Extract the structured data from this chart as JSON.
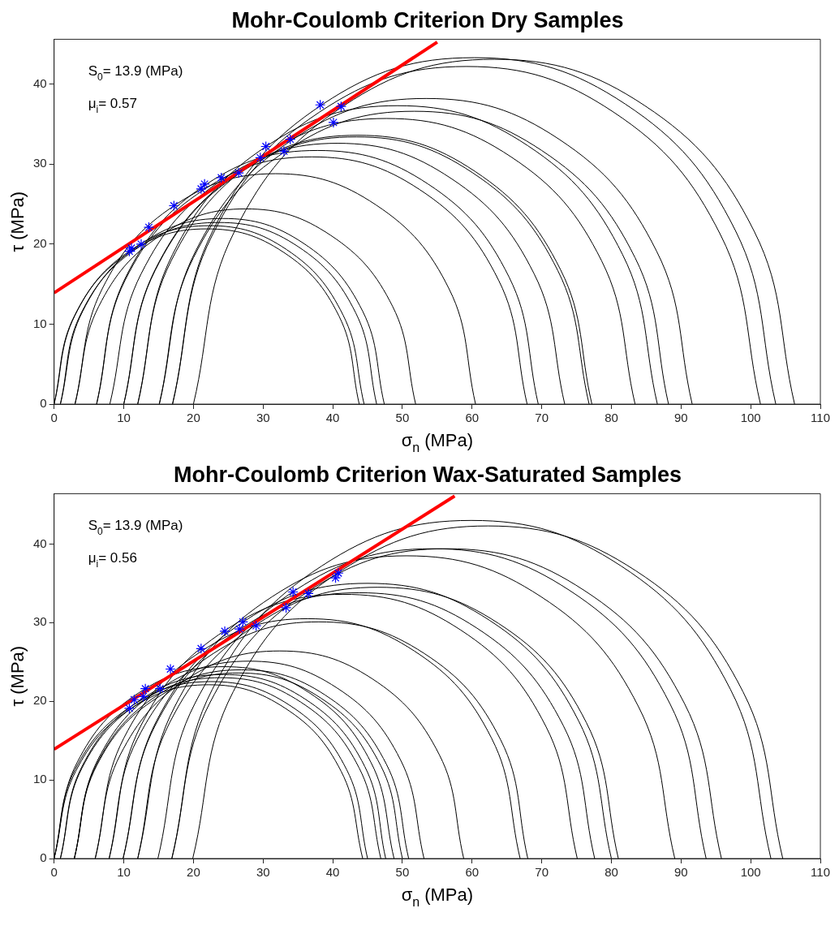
{
  "chart_data": [
    {
      "type": "line",
      "title": "Mohr-Coulomb Criterion Dry Samples",
      "xlabel": "σ$_{n}$ (MPa)",
      "ylabel": "τ (MPa)",
      "annotations": [
        "S$_{0}$= 13.9 (MPa)",
        "μ$_{i}$= 0.57"
      ],
      "xlim": [
        0,
        110
      ],
      "ylim": [
        0,
        45.6
      ],
      "xticks": [
        0,
        10,
        20,
        30,
        40,
        50,
        60,
        70,
        80,
        90,
        100,
        110
      ],
      "yticks": [
        0,
        10,
        20,
        30,
        40
      ],
      "grid": false,
      "marker": "none",
      "series": [
        {
          "color": "#000000",
          "x": [
            0,
            2.9,
            10.9,
            21.9,
            32.9,
            40.9,
            43.8
          ],
          "values": [
            0,
            11.0,
            19.0,
            21.9,
            19.0,
            11.0,
            0
          ]
        },
        {
          "color": "#000000",
          "x": [
            0,
            3.0,
            11.1,
            22.3,
            33.4,
            41.5,
            44.5
          ],
          "values": [
            0,
            11.1,
            19.3,
            22.3,
            19.3,
            11.1,
            0
          ]
        },
        {
          "color": "#000000",
          "x": [
            0.9,
            3.9,
            12.3,
            23.6,
            35.0,
            43.3,
            46.3
          ],
          "values": [
            0,
            11.4,
            19.7,
            22.7,
            19.7,
            11.4,
            0
          ]
        },
        {
          "color": "#000000",
          "x": [
            0.9,
            4.1,
            12.6,
            24.2,
            35.8,
            44.3,
            47.4
          ],
          "values": [
            0,
            11.6,
            20.1,
            23.2,
            20.1,
            11.6,
            0
          ]
        },
        {
          "color": "#000000",
          "x": [
            3,
            6.9,
            17.4,
            31.8,
            46.2,
            56.7,
            60.5
          ],
          "values": [
            0,
            14.4,
            24.9,
            28.8,
            24.9,
            14.4,
            0
          ]
        },
        {
          "color": "#000000",
          "x": [
            3,
            6.4,
            15.3,
            27.5,
            39.7,
            48.6,
            51.9
          ],
          "values": [
            0,
            12.2,
            21.1,
            24.4,
            21.1,
            12.2,
            0
          ]
        },
        {
          "color": "#000000",
          "x": [
            6.1,
            10.2,
            21.5,
            37.0,
            52.5,
            63.8,
            67.9
          ],
          "values": [
            0,
            15.5,
            26.8,
            30.9,
            26.8,
            15.5,
            0
          ]
        },
        {
          "color": "#000000",
          "x": [
            6.1,
            10.3,
            21.9,
            37.8,
            53.7,
            65.3,
            69.5
          ],
          "values": [
            0,
            15.9,
            27.5,
            31.7,
            27.5,
            15.9,
            0
          ]
        },
        {
          "color": "#000000",
          "x": [
            8,
            12.5,
            24.4,
            40.7,
            57.0,
            68.9,
            73.3
          ],
          "values": [
            0,
            16.3,
            28.2,
            32.6,
            28.2,
            16.3,
            0
          ]
        },
        {
          "color": "#000000",
          "x": [
            10,
            14.5,
            26.7,
            43.4,
            60.1,
            72.3,
            76.8
          ],
          "values": [
            0,
            16.7,
            28.9,
            33.4,
            28.9,
            16.7,
            0
          ]
        },
        {
          "color": "#000000",
          "x": [
            10,
            14.5,
            26.8,
            43.6,
            60.4,
            72.7,
            77.2
          ],
          "values": [
            0,
            16.8,
            29.1,
            33.6,
            29.1,
            16.8,
            0
          ]
        },
        {
          "color": "#000000",
          "x": [
            12,
            16.8,
            29.8,
            47.7,
            65.6,
            78.6,
            83.4
          ],
          "values": [
            0,
            17.9,
            30.9,
            35.7,
            30.9,
            17.9,
            0
          ]
        },
        {
          "color": "#000000",
          "x": [
            12,
            17.0,
            30.6,
            49.3,
            68.0,
            81.6,
            86.6
          ],
          "values": [
            0,
            18.7,
            32.3,
            37.3,
            32.3,
            18.7,
            0
          ]
        },
        {
          "color": "#000000",
          "x": [
            15.1,
            20.0,
            33.4,
            51.7,
            70.0,
            83.4,
            88.2
          ],
          "values": [
            0,
            18.3,
            31.7,
            36.6,
            31.7,
            18.3,
            0
          ]
        },
        {
          "color": "#000000",
          "x": [
            15.1,
            20.3,
            34.3,
            53.4,
            72.5,
            86.5,
            91.6
          ],
          "values": [
            0,
            19.1,
            33.1,
            38.2,
            33.1,
            19.1,
            0
          ]
        },
        {
          "color": "#000000",
          "x": [
            17,
            22.7,
            38.1,
            59.2,
            80.3,
            95.7,
            101.4
          ],
          "values": [
            0,
            21.1,
            36.5,
            42.2,
            36.5,
            21.1,
            0
          ]
        },
        {
          "color": "#000000",
          "x": [
            17,
            22.8,
            38.6,
            60.3,
            82.0,
            97.8,
            103.6
          ],
          "values": [
            0,
            21.7,
            37.5,
            43.3,
            37.5,
            21.7,
            0
          ]
        },
        {
          "color": "#000000",
          "x": [
            20,
            25.9,
            41.6,
            63.2,
            84.8,
            100.5,
            106.3
          ],
          "values": [
            0,
            21.6,
            37.3,
            43.1,
            37.3,
            21.6,
            0
          ]
        },
        {
          "color": "#ff0000",
          "x": [
            0,
            55
          ],
          "values": [
            13.9,
            45.25
          ]
        },
        {
          "type": "scatter",
          "color": "#0000ff",
          "marker": "cross",
          "x": [
            10.8,
            11.1,
            12.5,
            13.6,
            17.2,
            21.1,
            21.6,
            24.0,
            26.5,
            29.6,
            30.4,
            33.0,
            33.9,
            38.2,
            40.1,
            41.2
          ],
          "values": [
            19.1,
            19.5,
            20.0,
            22.1,
            24.8,
            26.9,
            27.5,
            28.3,
            28.9,
            30.8,
            32.2,
            31.6,
            33.1,
            37.4,
            35.2,
            37.2
          ]
        }
      ]
    },
    {
      "type": "line",
      "title": "Mohr-Coulomb Criterion Wax-Saturated Samples",
      "xlabel": "σ$_{n}$ (MPa)",
      "ylabel": "τ (MPa)",
      "annotations": [
        "S$_{0}$= 13.9 (MPa)",
        "μ$_{i}$= 0.56"
      ],
      "xlim": [
        0,
        110
      ],
      "ylim": [
        0,
        46.4
      ],
      "xticks": [
        0,
        10,
        20,
        30,
        40,
        50,
        60,
        70,
        80,
        90,
        100,
        110
      ],
      "yticks": [
        0,
        10,
        20,
        30,
        40
      ],
      "grid": false,
      "marker": "none",
      "series": [
        {
          "color": "#000000",
          "x": [
            0,
            3.1,
            11.1,
            22.2,
            33.2,
            41.2,
            44.3
          ],
          "values": [
            0,
            11.1,
            19.1,
            22.1,
            19.1,
            11.1,
            0
          ]
        },
        {
          "color": "#000000",
          "x": [
            0,
            3.0,
            11.3,
            22.5,
            33.8,
            42.0,
            45.0
          ],
          "values": [
            0,
            11.3,
            19.5,
            22.5,
            19.5,
            11.3,
            0
          ]
        },
        {
          "color": "#000000",
          "x": [
            0.9,
            4.0,
            12.4,
            23.9,
            35.4,
            43.8,
            46.9
          ],
          "values": [
            0,
            11.5,
            19.9,
            23.0,
            19.9,
            11.5,
            0
          ]
        },
        {
          "color": "#000000",
          "x": [
            0.9,
            4.0,
            12.6,
            24.3,
            36.0,
            44.6,
            47.6
          ],
          "values": [
            0,
            11.7,
            20.3,
            23.4,
            20.3,
            11.7,
            0
          ]
        },
        {
          "color": "#000000",
          "x": [
            0,
            3.3,
            12.2,
            24.4,
            36.6,
            45.5,
            48.8
          ],
          "values": [
            0,
            12.2,
            21.1,
            24.4,
            21.1,
            12.2,
            0
          ]
        },
        {
          "color": "#000000",
          "x": [
            2.9,
            6.1,
            14.7,
            26.5,
            38.3,
            46.9,
            50.0
          ],
          "values": [
            0,
            11.8,
            20.4,
            23.6,
            20.4,
            11.8,
            0
          ]
        },
        {
          "color": "#000000",
          "x": [
            2.9,
            6.1,
            14.9,
            26.9,
            38.9,
            47.7,
            50.9
          ],
          "values": [
            0,
            12.0,
            20.8,
            24.0,
            20.8,
            12.0,
            0
          ]
        },
        {
          "color": "#000000",
          "x": [
            2.9,
            6.3,
            15.4,
            28.0,
            40.6,
            49.7,
            53.1
          ],
          "values": [
            0,
            12.6,
            21.7,
            25.1,
            21.7,
            12.6,
            0
          ]
        },
        {
          "color": "#000000",
          "x": [
            5.9,
            9.5,
            19.2,
            32.4,
            45.6,
            55.3,
            58.8
          ],
          "values": [
            0,
            13.2,
            22.9,
            26.4,
            22.9,
            13.2,
            0
          ]
        },
        {
          "color": "#000000",
          "x": [
            5.9,
            10.0,
            21.2,
            36.4,
            51.7,
            62.8,
            66.9
          ],
          "values": [
            0,
            15.3,
            26.4,
            30.5,
            26.4,
            15.3,
            0
          ]
        },
        {
          "color": "#000000",
          "x": [
            7.9,
            11.9,
            22.9,
            38.0,
            53.1,
            64.1,
            68.0
          ],
          "values": [
            0,
            15.1,
            26.1,
            30.1,
            26.1,
            15.1,
            0
          ]
        },
        {
          "color": "#000000",
          "x": [
            7.9,
            12.4,
            24.7,
            41.5,
            58.3,
            70.6,
            75.1
          ],
          "values": [
            0,
            16.8,
            29.1,
            33.6,
            29.1,
            16.8,
            0
          ]
        },
        {
          "color": "#000000",
          "x": [
            9.9,
            14.5,
            26.9,
            43.8,
            60.7,
            73.1,
            77.6
          ],
          "values": [
            0,
            16.9,
            29.3,
            33.8,
            29.3,
            16.9,
            0
          ]
        },
        {
          "color": "#000000",
          "x": [
            9.9,
            14.7,
            27.5,
            45.0,
            62.5,
            75.3,
            80.0
          ],
          "values": [
            0,
            17.5,
            30.3,
            35.0,
            30.3,
            17.5,
            0
          ]
        },
        {
          "color": "#000000",
          "x": [
            12,
            16.6,
            29.3,
            46.5,
            63.8,
            76.4,
            81.0
          ],
          "values": [
            0,
            17.3,
            29.9,
            34.5,
            29.9,
            17.3,
            0
          ]
        },
        {
          "color": "#000000",
          "x": [
            12,
            17.3,
            31.3,
            50.6,
            69.9,
            83.9,
            89.1
          ],
          "values": [
            0,
            19.3,
            33.3,
            38.5,
            33.3,
            19.3,
            0
          ]
        },
        {
          "color": "#000000",
          "x": [
            14.9,
            20.2,
            34.6,
            54.3,
            74.0,
            88.4,
            93.6
          ],
          "values": [
            0,
            19.7,
            34.1,
            39.4,
            34.1,
            19.7,
            0
          ]
        },
        {
          "color": "#000000",
          "x": [
            16.9,
            22.3,
            36.7,
            56.4,
            76.1,
            90.5,
            95.8
          ],
          "values": [
            0,
            19.7,
            34.1,
            39.4,
            34.1,
            19.7,
            0
          ]
        },
        {
          "color": "#000000",
          "x": [
            16.9,
            22.7,
            38.4,
            59.9,
            81.4,
            97.1,
            102.9
          ],
          "values": [
            0,
            21.5,
            37.2,
            43.0,
            37.2,
            21.5,
            0
          ]
        },
        {
          "color": "#000000",
          "x": [
            19.9,
            25.7,
            41.2,
            62.3,
            83.5,
            98.9,
            104.6
          ],
          "values": [
            0,
            21.2,
            36.6,
            42.3,
            36.6,
            21.2,
            0
          ]
        },
        {
          "color": "#ff0000",
          "x": [
            0,
            57.5
          ],
          "values": [
            13.9,
            46.1
          ]
        },
        {
          "type": "scatter",
          "color": "#0000ff",
          "marker": "cross",
          "x": [
            10.8,
            11.5,
            12.8,
            13.1,
            15.2,
            16.7,
            21.1,
            24.5,
            26.6,
            27.1,
            29.0,
            33.3,
            34.3,
            36.5,
            40.4,
            40.8
          ],
          "values": [
            19.1,
            20.2,
            20.6,
            21.6,
            21.6,
            24.1,
            26.7,
            28.9,
            29.2,
            30.1,
            29.6,
            31.9,
            33.9,
            33.7,
            35.7,
            36.3
          ]
        }
      ]
    }
  ]
}
